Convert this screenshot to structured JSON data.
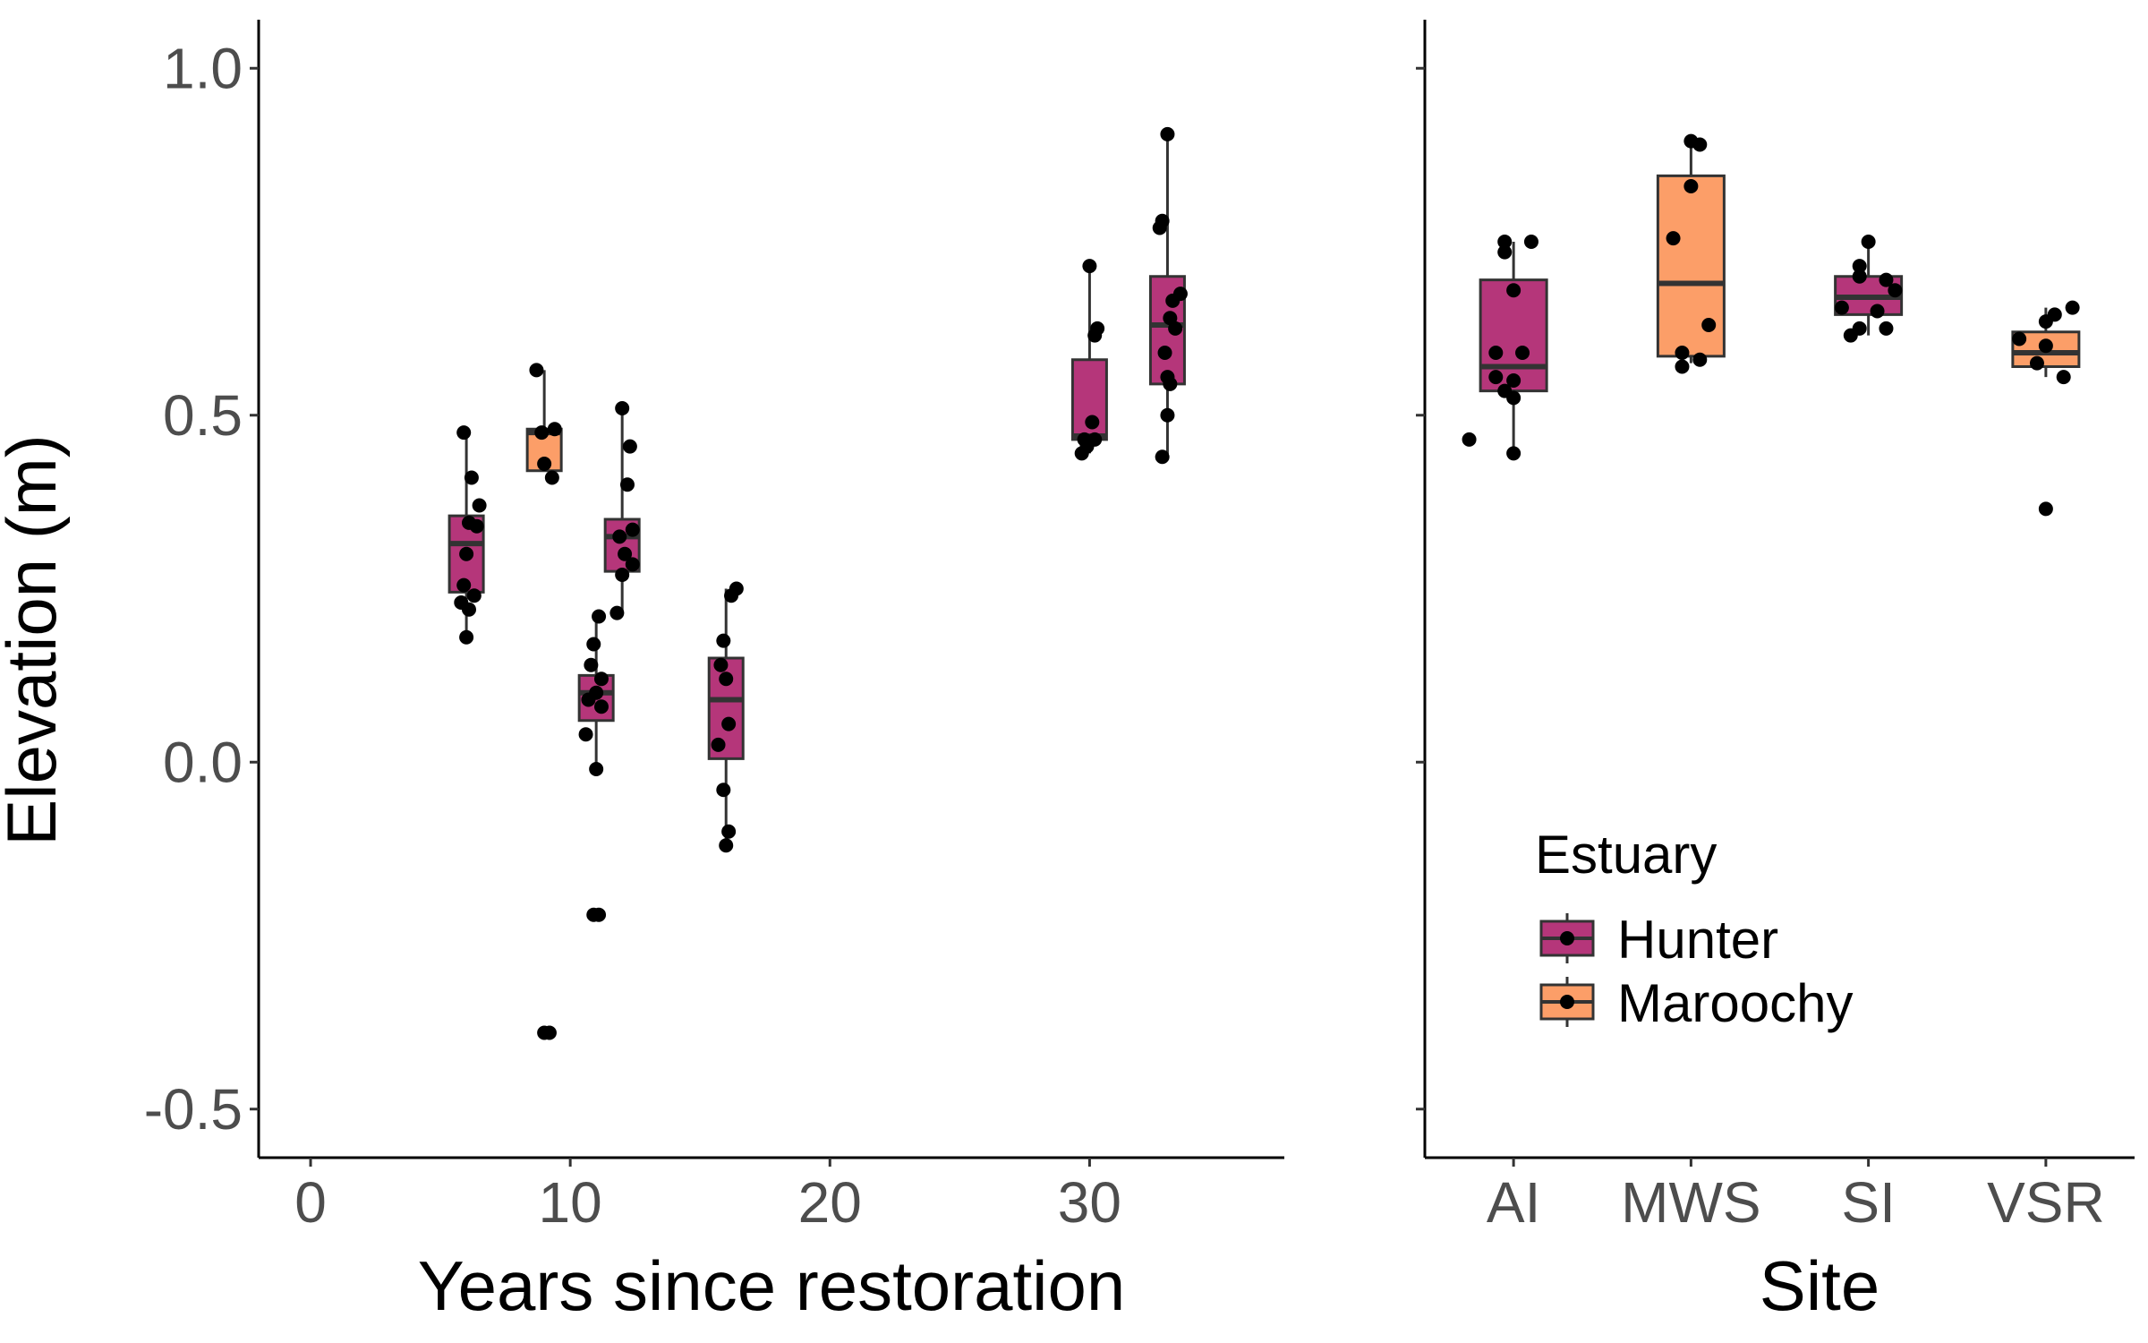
{
  "chart_data": [
    {
      "type": "box",
      "xlabel": "Years since restoration",
      "ylabel": "Elevation (m)",
      "xlim": [
        -2,
        37.5
      ],
      "ylim": [
        -0.57,
        1.07
      ],
      "xticks": [
        0,
        10,
        20,
        30
      ],
      "xtick_labels": [
        "0",
        "10",
        "20",
        "30"
      ],
      "yticks": [
        -0.5,
        0.0,
        0.5,
        1.0
      ],
      "ytick_labels": [
        "-0.5",
        "0.0",
        "0.5",
        "1.0"
      ],
      "grid": false,
      "boxes": [
        {
          "x": 6,
          "estuary": "Hunter",
          "q1": 0.245,
          "median": 0.315,
          "q3": 0.355,
          "whisker_low": 0.18,
          "whisker_high": 0.475,
          "points": [
            [
              5.9,
              0.475
            ],
            [
              6.2,
              0.41
            ],
            [
              6.5,
              0.37
            ],
            [
              6.1,
              0.345
            ],
            [
              6.4,
              0.34
            ],
            [
              6.0,
              0.3
            ],
            [
              5.9,
              0.255
            ],
            [
              6.3,
              0.24
            ],
            [
              5.8,
              0.23
            ],
            [
              6.1,
              0.22
            ],
            [
              6.0,
              0.18
            ]
          ]
        },
        {
          "x": 9,
          "estuary": "Maroochy",
          "q1": 0.42,
          "median": 0.475,
          "q3": 0.48,
          "whisker_low": 0.42,
          "whisker_high": 0.565,
          "points": [
            [
              8.7,
              0.565
            ],
            [
              9.4,
              0.48
            ],
            [
              8.9,
              0.475
            ],
            [
              9.0,
              0.43
            ],
            [
              9.3,
              0.41
            ],
            [
              9.0,
              -0.39
            ],
            [
              9.2,
              -0.39
            ]
          ]
        },
        {
          "x": 11,
          "estuary": "Hunter",
          "q1": 0.06,
          "median": 0.1,
          "q3": 0.125,
          "whisker_low": -0.01,
          "whisker_high": 0.21,
          "points": [
            [
              11.1,
              0.21
            ],
            [
              10.9,
              0.17
            ],
            [
              10.8,
              0.14
            ],
            [
              11.2,
              0.12
            ],
            [
              11.0,
              0.1
            ],
            [
              10.7,
              0.09
            ],
            [
              11.2,
              0.08
            ],
            [
              10.6,
              0.04
            ],
            [
              11.0,
              -0.01
            ],
            [
              10.9,
              -0.22
            ],
            [
              11.1,
              -0.22
            ]
          ]
        },
        {
          "x": 12,
          "estuary": "Hunter",
          "q1": 0.275,
          "median": 0.325,
          "q3": 0.35,
          "whisker_low": 0.215,
          "whisker_high": 0.51,
          "points": [
            [
              12.0,
              0.51
            ],
            [
              12.3,
              0.455
            ],
            [
              12.2,
              0.4
            ],
            [
              12.4,
              0.335
            ],
            [
              11.9,
              0.325
            ],
            [
              12.1,
              0.3
            ],
            [
              12.4,
              0.285
            ],
            [
              12.0,
              0.27
            ],
            [
              11.8,
              0.215
            ]
          ]
        },
        {
          "x": 16,
          "estuary": "Hunter",
          "q1": 0.005,
          "median": 0.09,
          "q3": 0.15,
          "whisker_low": -0.12,
          "whisker_high": 0.25,
          "points": [
            [
              16.4,
              0.25
            ],
            [
              16.2,
              0.24
            ],
            [
              15.9,
              0.175
            ],
            [
              15.8,
              0.14
            ],
            [
              16.0,
              0.12
            ],
            [
              16.1,
              0.055
            ],
            [
              15.7,
              0.025
            ],
            [
              15.9,
              -0.04
            ],
            [
              16.1,
              -0.1
            ],
            [
              16.0,
              -0.12
            ]
          ]
        },
        {
          "x": 30,
          "estuary": "Hunter",
          "q1": 0.465,
          "median": 0.47,
          "q3": 0.58,
          "whisker_low": 0.445,
          "whisker_high": 0.715,
          "points": [
            [
              30.0,
              0.715
            ],
            [
              30.3,
              0.625
            ],
            [
              30.2,
              0.615
            ],
            [
              30.1,
              0.49
            ],
            [
              29.8,
              0.465
            ],
            [
              30.2,
              0.465
            ],
            [
              29.9,
              0.455
            ],
            [
              29.7,
              0.445
            ]
          ]
        },
        {
          "x": 33,
          "estuary": "Hunter",
          "q1": 0.545,
          "median": 0.63,
          "q3": 0.7,
          "whisker_low": 0.44,
          "whisker_high": 0.905,
          "points": [
            [
              33.0,
              0.905
            ],
            [
              32.8,
              0.78
            ],
            [
              32.7,
              0.77
            ],
            [
              33.5,
              0.675
            ],
            [
              33.2,
              0.665
            ],
            [
              33.1,
              0.64
            ],
            [
              33.3,
              0.625
            ],
            [
              32.9,
              0.59
            ],
            [
              33.0,
              0.555
            ],
            [
              33.1,
              0.545
            ],
            [
              33.0,
              0.5
            ],
            [
              32.8,
              0.44
            ]
          ]
        }
      ]
    },
    {
      "type": "box",
      "xlabel": "Site",
      "ylabel": "",
      "categories": [
        "AI",
        "MWS",
        "SI",
        "VSR"
      ],
      "ylim": [
        -0.57,
        1.07
      ],
      "grid": false,
      "legend": {
        "title": "Estuary",
        "position": "bottom-left",
        "entries": [
          {
            "name": "Hunter",
            "color": "#b5367a"
          },
          {
            "name": "Maroochy",
            "color": "#fc9e68"
          }
        ]
      },
      "boxes": [
        {
          "category": "AI",
          "estuary": "Hunter",
          "q1": 0.535,
          "median": 0.57,
          "q3": 0.695,
          "whisker_low": 0.445,
          "whisker_high": 0.75,
          "points": [
            [
              -0.05,
              0.75
            ],
            [
              0.1,
              0.75
            ],
            [
              -0.05,
              0.735
            ],
            [
              0.0,
              0.68
            ],
            [
              0.05,
              0.59
            ],
            [
              -0.1,
              0.59
            ],
            [
              -0.1,
              0.555
            ],
            [
              0.0,
              0.55
            ],
            [
              -0.05,
              0.535
            ],
            [
              0.0,
              0.525
            ],
            [
              -0.25,
              0.465
            ],
            [
              0.0,
              0.445
            ]
          ]
        },
        {
          "category": "MWS",
          "estuary": "Maroochy",
          "q1": 0.585,
          "median": 0.69,
          "q3": 0.845,
          "whisker_low": 0.575,
          "whisker_high": 0.895,
          "points": [
            [
              0.0,
              0.895
            ],
            [
              0.05,
              0.89
            ],
            [
              0.0,
              0.83
            ],
            [
              -0.1,
              0.755
            ],
            [
              0.1,
              0.63
            ],
            [
              -0.05,
              0.59
            ],
            [
              0.05,
              0.58
            ],
            [
              -0.05,
              0.57
            ]
          ]
        },
        {
          "category": "SI",
          "estuary": "Hunter",
          "q1": 0.645,
          "median": 0.67,
          "q3": 0.7,
          "whisker_low": 0.615,
          "whisker_high": 0.75,
          "points": [
            [
              0.0,
              0.75
            ],
            [
              -0.05,
              0.715
            ],
            [
              -0.05,
              0.7
            ],
            [
              0.1,
              0.695
            ],
            [
              0.15,
              0.68
            ],
            [
              -0.15,
              0.655
            ],
            [
              0.05,
              0.65
            ],
            [
              -0.05,
              0.625
            ],
            [
              0.1,
              0.625
            ],
            [
              -0.1,
              0.615
            ]
          ]
        },
        {
          "category": "VSR",
          "estuary": "Maroochy",
          "q1": 0.57,
          "median": 0.59,
          "q3": 0.62,
          "whisker_low": 0.555,
          "whisker_high": 0.655,
          "points": [
            [
              0.15,
              0.655
            ],
            [
              0.05,
              0.645
            ],
            [
              0.0,
              0.635
            ],
            [
              -0.15,
              0.61
            ],
            [
              0.0,
              0.6
            ],
            [
              -0.05,
              0.575
            ],
            [
              0.1,
              0.555
            ],
            [
              0.0,
              0.365
            ]
          ]
        }
      ]
    }
  ],
  "colors": {
    "Hunter": "#b5367a",
    "Maroochy": "#fc9e68",
    "box_stroke": "#333333",
    "point": "#000000"
  }
}
